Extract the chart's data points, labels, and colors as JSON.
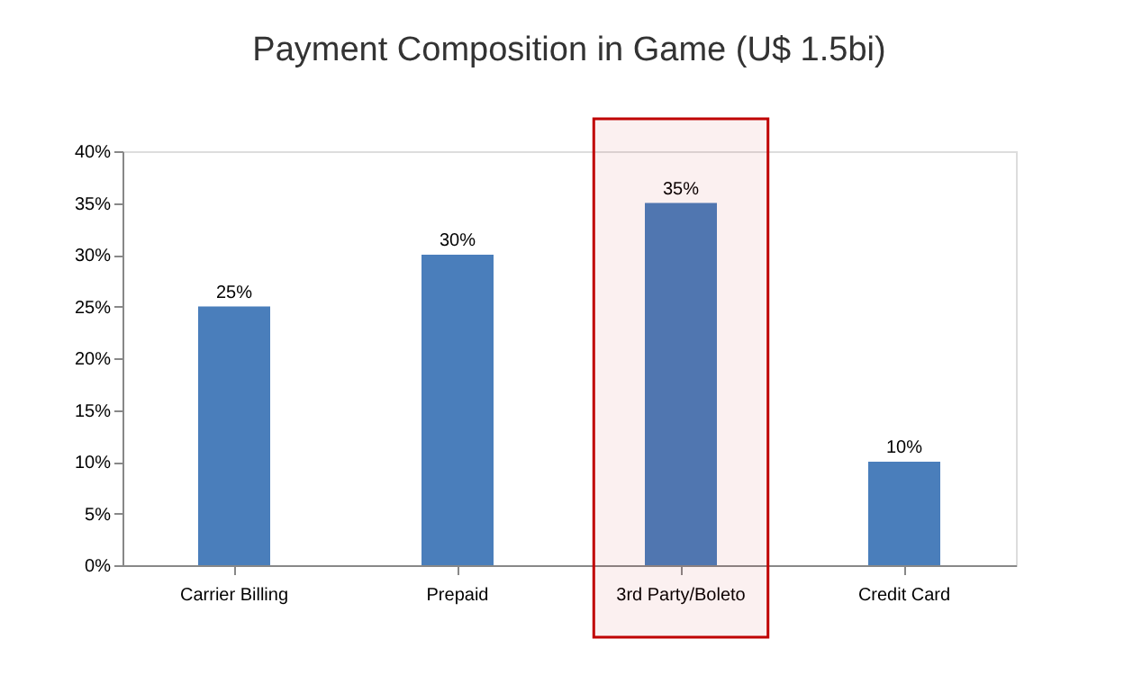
{
  "chart_data": {
    "type": "bar",
    "title": "Payment Composition in Game (U$ 1.5bi)",
    "categories": [
      "Carrier Billing",
      "Prepaid",
      "3rd Party/Boleto",
      "Credit Card"
    ],
    "values": [
      25,
      30,
      35,
      10
    ],
    "value_labels": [
      "25%",
      "30%",
      "35%",
      "10%"
    ],
    "color": "#4a7ebb",
    "ylim": [
      0,
      40
    ],
    "yticks": [
      {
        "value": 0,
        "label": "0%"
      },
      {
        "value": 5,
        "label": "5%"
      },
      {
        "value": 10,
        "label": "10%"
      },
      {
        "value": 15,
        "label": "15%"
      },
      {
        "value": 20,
        "label": "20%"
      },
      {
        "value": 25,
        "label": "25%"
      },
      {
        "value": 30,
        "label": "30%"
      },
      {
        "value": 35,
        "label": "35%"
      },
      {
        "value": 40,
        "label": "40%"
      }
    ],
    "bands": [
      {
        "axis": "x",
        "from": "3rd Party/Boleto",
        "to": "3rd Party/Boleto",
        "color": "#c00000"
      }
    ],
    "grid": false
  }
}
